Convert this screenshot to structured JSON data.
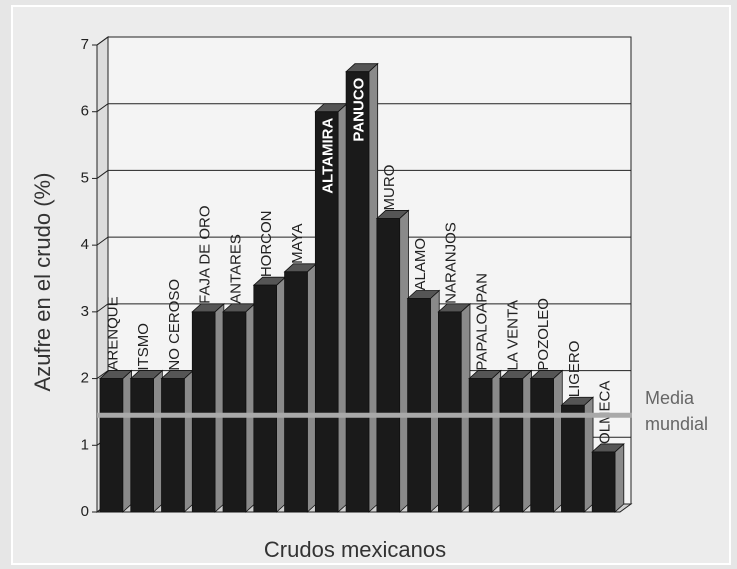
{
  "chart_data": {
    "type": "bar3d",
    "x_label": "Crudos mexicanos",
    "y_label": "Azufre en el crudo (%)",
    "categories": [
      "ARENQUE",
      "ITSMO",
      "NO CEROSO",
      "FAJA DE ORO",
      "ANTARES",
      "HORCON",
      "MAYA",
      "ALTAMIRA",
      "PANUCO",
      "MURO",
      "ALAMO",
      "NARANJOS",
      "PAPALOAPAN",
      "LA VENTA",
      "POZOLEO",
      "LIGERO",
      "OLMECA"
    ],
    "values": [
      2,
      2,
      2,
      3,
      3,
      3.4,
      3.6,
      6,
      6.6,
      4.4,
      3.2,
      3,
      2,
      2,
      2,
      1.6,
      0.9
    ],
    "color": "#1a1a1a",
    "ylim": [
      0,
      7
    ],
    "yticks": [
      0,
      1,
      2,
      3,
      4,
      5,
      6,
      7
    ],
    "grid": true,
    "reference_line": {
      "lines": [
        "Media",
        "mundial"
      ],
      "value": 1.45,
      "color": "#a9a9a9"
    }
  }
}
